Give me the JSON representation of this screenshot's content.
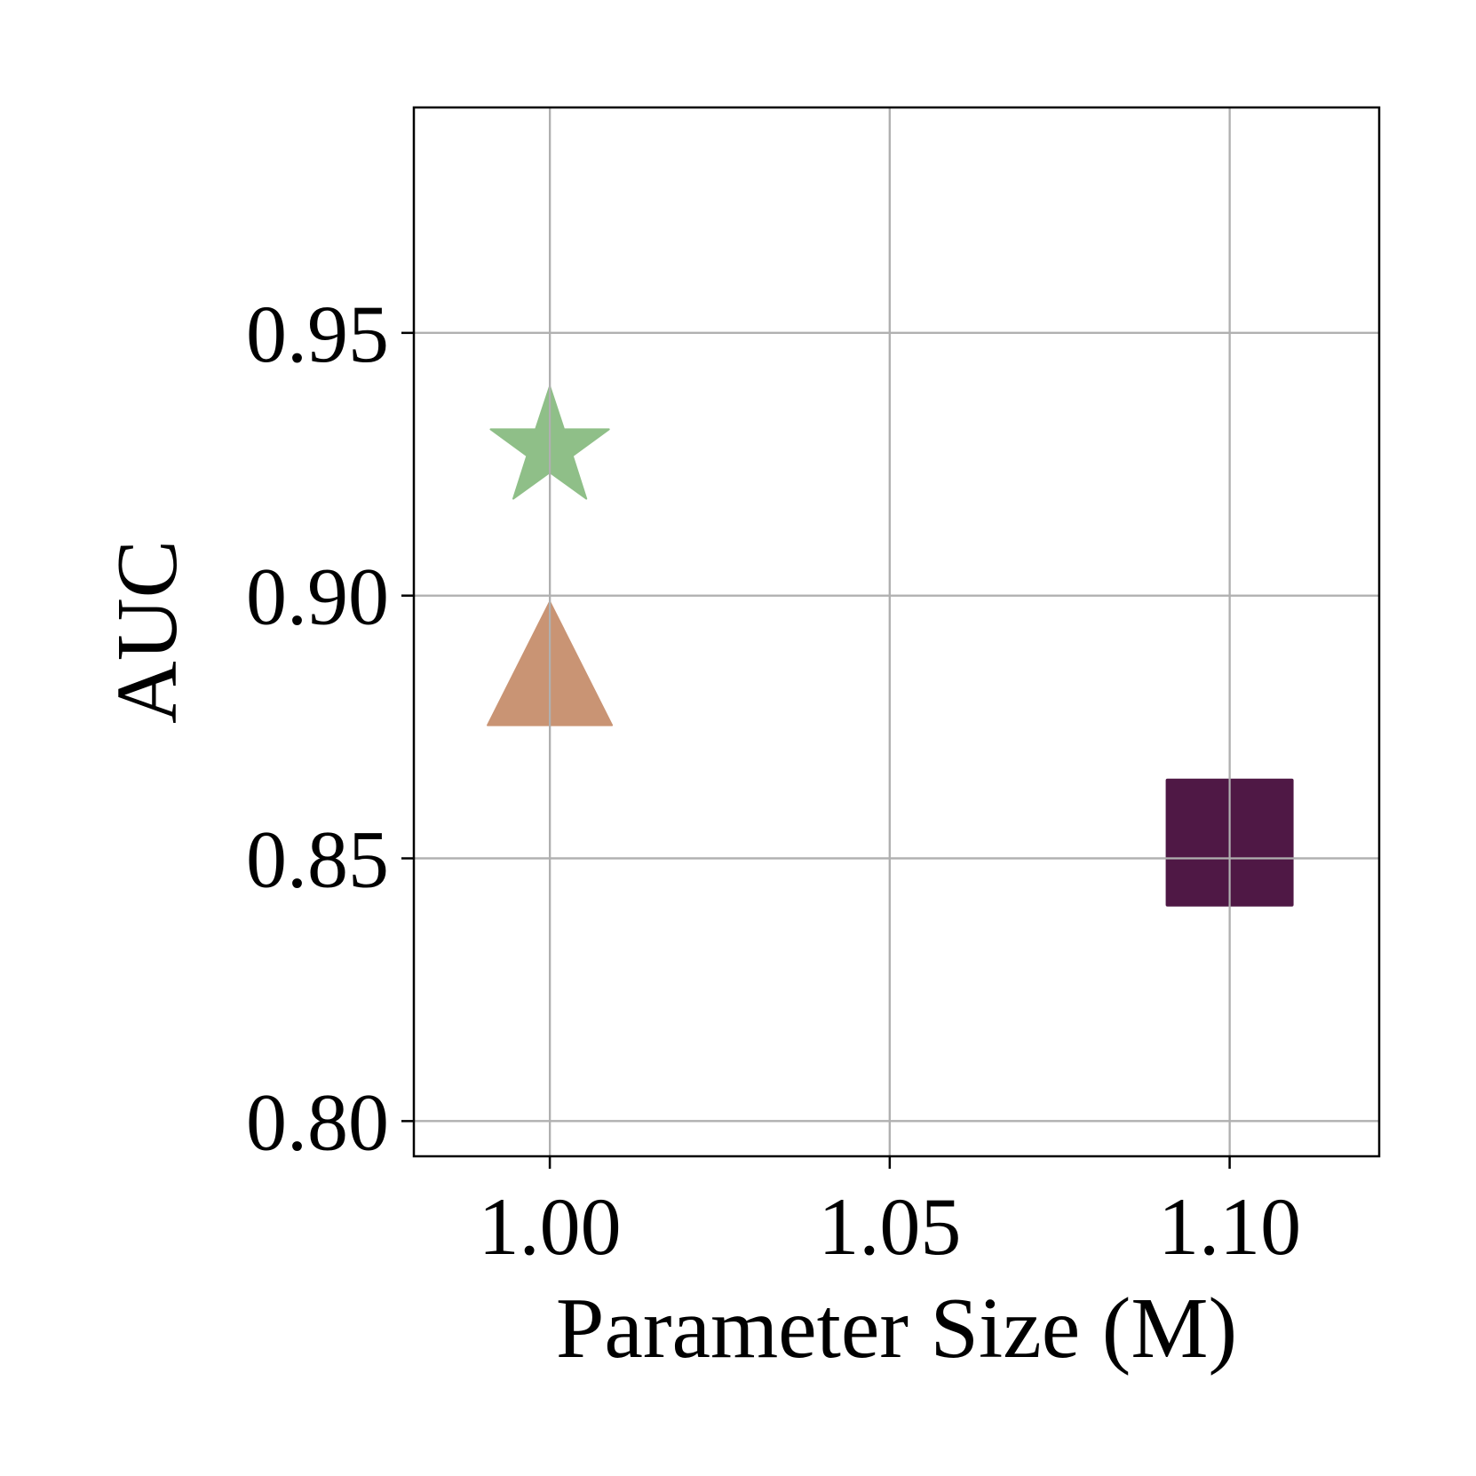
{
  "chart_data": {
    "type": "scatter",
    "title": "",
    "xlabel": "Parameter Size (M)",
    "ylabel": "AUC",
    "xlim": [
      0.98,
      1.122
    ],
    "ylim": [
      0.7933,
      0.9929
    ],
    "xticks": [
      1.0,
      1.05,
      1.1
    ],
    "xtick_labels": [
      "1.00",
      "1.05",
      "1.10"
    ],
    "yticks": [
      0.8,
      0.85,
      0.9,
      0.95
    ],
    "ytick_labels": [
      "0.80",
      "0.85",
      "0.90",
      "0.95"
    ],
    "grid": true,
    "legend": "none",
    "points": [
      {
        "x": 1.0,
        "y": 0.928,
        "marker": "star",
        "color": "#8fbf88"
      },
      {
        "x": 1.0,
        "y": 0.887,
        "marker": "triangle",
        "color": "#c99474"
      },
      {
        "x": 1.1,
        "y": 0.853,
        "marker": "square",
        "color": "#4f1845"
      }
    ]
  }
}
